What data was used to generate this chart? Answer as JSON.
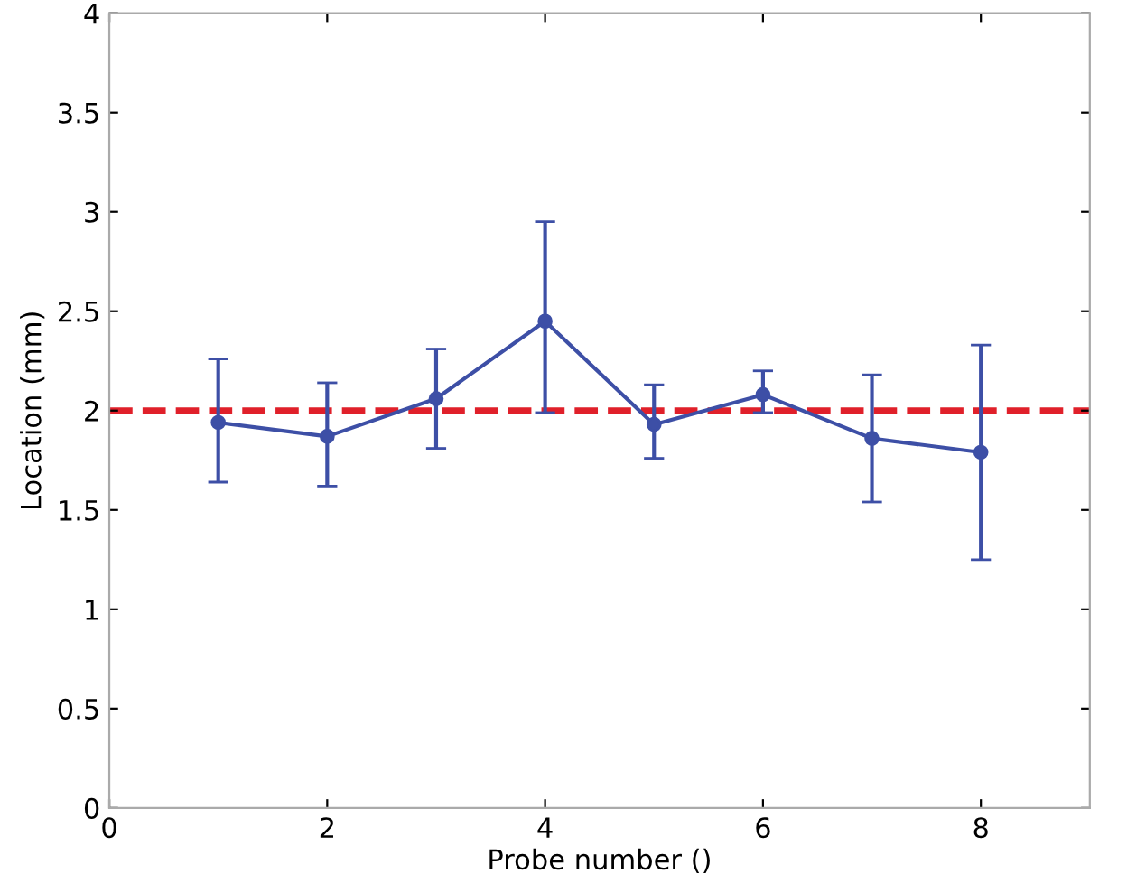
{
  "chart_data": {
    "type": "line",
    "xlabel": "Probe number ()",
    "ylabel": "Location (mm)",
    "x": [
      1,
      2,
      3,
      4,
      5,
      6,
      7,
      8
    ],
    "series": [
      {
        "color": "#3d4fa6",
        "values": [
          1.94,
          1.87,
          2.06,
          2.45,
          1.93,
          2.08,
          1.86,
          1.79
        ],
        "errors": [
          [
            1.64,
            2.26
          ],
          [
            1.62,
            2.14
          ],
          [
            1.81,
            2.31
          ],
          [
            1.99,
            2.95
          ],
          [
            1.76,
            2.13
          ],
          [
            1.99,
            2.2
          ],
          [
            1.54,
            2.18
          ],
          [
            1.25,
            2.33
          ]
        ]
      }
    ],
    "xlim": [
      0,
      9
    ],
    "xticks": [
      0,
      2,
      4,
      6,
      8
    ],
    "ylim": [
      0,
      4
    ],
    "yticks": [
      0,
      0.5,
      1,
      1.5,
      2,
      2.5,
      3,
      3.5,
      4
    ],
    "ref_lines": [
      {
        "axis": "y",
        "value": 2,
        "color": "#e0202a",
        "line_style": "dashed"
      }
    ],
    "marker": "circle",
    "line_style": "solid",
    "grid": false,
    "legend": false
  }
}
